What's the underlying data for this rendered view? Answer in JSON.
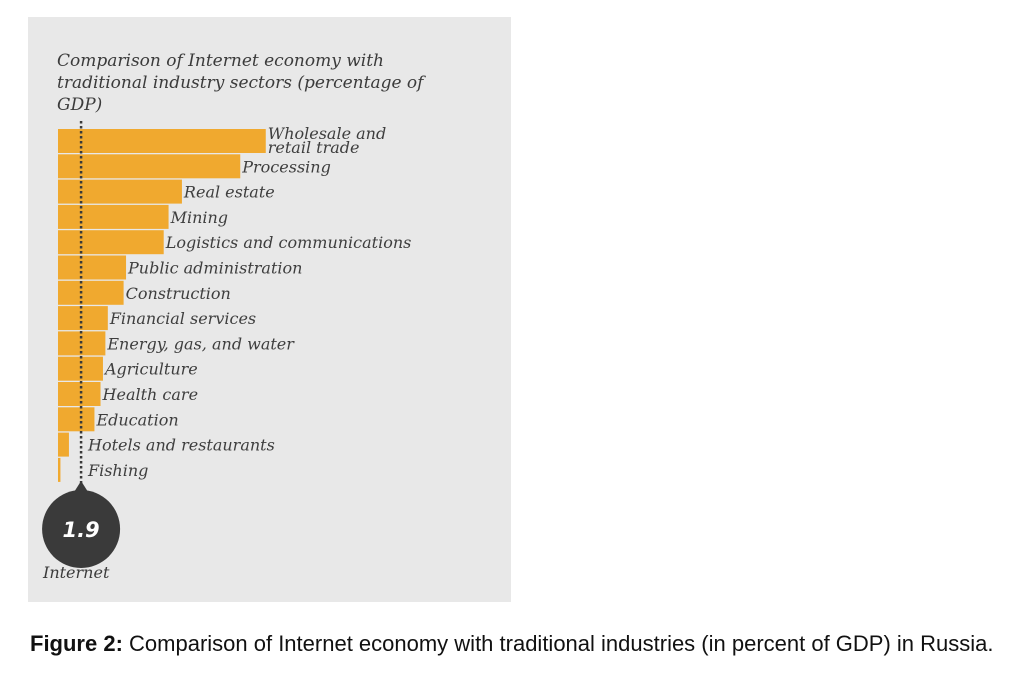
{
  "chart_data": {
    "type": "bar",
    "orientation": "horizontal",
    "title": "Comparison of Internet economy with traditional industry sectors (percentage of GDP)",
    "categories": [
      "Wholesale and retail trade",
      "Processing",
      "Real estate",
      "Mining",
      "Logistics and communications",
      "Public administration",
      "Construction",
      "Financial services",
      "Energy, gas, and water",
      "Agriculture",
      "Health care",
      "Education",
      "Hotels and restaurants",
      "Fishing"
    ],
    "values": [
      17.1,
      15.0,
      10.2,
      9.1,
      8.7,
      5.6,
      5.4,
      4.1,
      3.9,
      3.7,
      3.5,
      3.0,
      0.9,
      0.2
    ],
    "reference": {
      "label": "Internet",
      "value": 1.9
    },
    "bar_color": "#f0a92f",
    "reference_color": "#3a3a3a",
    "panel_color": "#e8e8e8"
  },
  "figure": {
    "label": "Figure 2:",
    "caption": " Comparison of Internet economy with traditional industries (in percent of GDP) in Russia."
  }
}
